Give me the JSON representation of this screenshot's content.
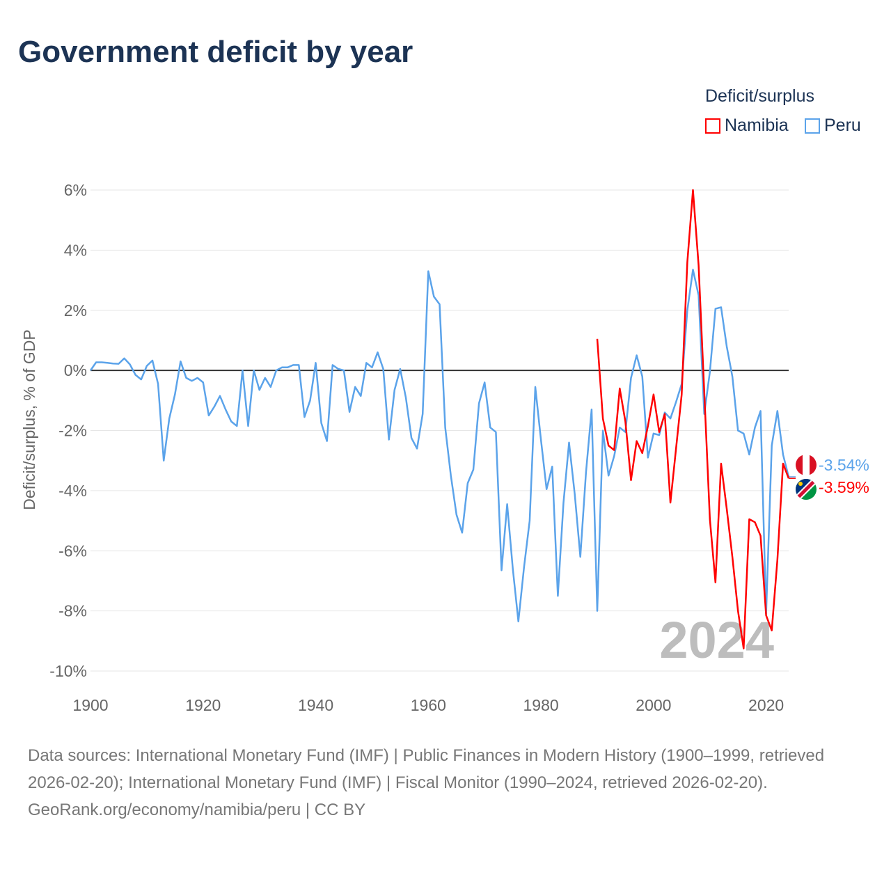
{
  "title": "Government deficit by year",
  "legend": {
    "title": "Deficit/surplus",
    "items": [
      {
        "name": "Namibia",
        "color": "#ff0000"
      },
      {
        "name": "Peru",
        "color": "#5ba3ea"
      }
    ]
  },
  "watermark_year": "2024",
  "end_labels": {
    "peru": "-3.54%",
    "namibia": "-3.59%"
  },
  "footer": {
    "sources": "Data sources: International Monetary Fund (IMF) | Public Finances in Modern History (1900–1999, retrieved 2026-02-20); International Monetary Fund (IMF) | Fiscal Monitor (1990–2024, retrieved 2026-02-20).",
    "credit": "GeoRank.org/economy/namibia/peru | CC BY"
  },
  "chart_data": {
    "type": "line",
    "title": "Government deficit by year",
    "xlabel": "",
    "ylabel": "Deficit/surplus, % of GDP",
    "xlim": [
      1900,
      2024
    ],
    "ylim": [
      -10,
      6
    ],
    "x_ticks": [
      "1900",
      "1920",
      "1940",
      "1960",
      "1980",
      "2000",
      "2020"
    ],
    "y_ticks": [
      "6%",
      "4%",
      "2%",
      "0%",
      "-2%",
      "-4%",
      "-6%",
      "-8%",
      "-10%"
    ],
    "legend_position": "top-right",
    "grid": true,
    "series": [
      {
        "name": "Peru",
        "color": "#5ba3ea",
        "start_year": 1900,
        "values": [
          0.0,
          0.27,
          0.27,
          0.25,
          0.23,
          0.22,
          0.4,
          0.2,
          -0.15,
          -0.3,
          0.15,
          0.33,
          -0.45,
          -3.0,
          -1.6,
          -0.8,
          0.3,
          -0.25,
          -0.35,
          -0.25,
          -0.4,
          -1.5,
          -1.2,
          -0.85,
          -1.3,
          -1.7,
          -1.85,
          0.0,
          -1.85,
          0.0,
          -0.65,
          -0.25,
          -0.55,
          0.0,
          0.1,
          0.1,
          0.18,
          0.18,
          -1.55,
          -1.0,
          0.25,
          -1.75,
          -2.35,
          0.18,
          0.05,
          0.0,
          -1.38,
          -0.55,
          -0.85,
          0.25,
          0.1,
          0.6,
          0.05,
          -2.3,
          -0.65,
          0.05,
          -0.9,
          -2.25,
          -2.6,
          -1.45,
          3.3,
          2.45,
          2.2,
          -1.9,
          -3.5,
          -4.8,
          -5.4,
          -3.75,
          -3.3,
          -1.1,
          -0.4,
          -1.9,
          -2.05,
          -6.65,
          -4.45,
          -6.6,
          -8.35,
          -6.55,
          -5.0,
          -0.55,
          -2.3,
          -3.95,
          -3.2,
          -7.5,
          -4.4,
          -2.4,
          -4.1,
          -6.2,
          -3.4,
          -1.3,
          -8.0,
          -2.0,
          -3.5,
          -2.85,
          -1.9,
          -2.05,
          -0.25,
          0.5,
          -0.2,
          -2.9,
          -2.1,
          -2.15,
          -1.4,
          -1.6,
          -1.05,
          -0.45,
          2.0,
          3.35,
          2.5,
          -1.45,
          -0.05,
          2.05,
          2.1,
          0.8,
          -0.2,
          -2.0,
          -2.1,
          -2.8,
          -1.9,
          -1.35,
          -8.1,
          -2.5,
          -1.35,
          -2.8,
          -3.54
        ]
      },
      {
        "name": "Namibia",
        "color": "#ff0000",
        "start_year": 1990,
        "values": [
          1.05,
          -1.6,
          -2.5,
          -2.65,
          -0.6,
          -1.7,
          -3.65,
          -2.35,
          -2.75,
          -1.85,
          -0.8,
          -2.05,
          -1.45,
          -4.4,
          -2.6,
          -0.8,
          3.6,
          6.0,
          3.5,
          -0.7,
          -4.95,
          -7.05,
          -3.1,
          -4.6,
          -6.2,
          -8.0,
          -9.25,
          -4.95,
          -5.05,
          -5.5,
          -8.15,
          -8.65,
          -6.3,
          -3.1,
          -3.59
        ]
      }
    ]
  }
}
